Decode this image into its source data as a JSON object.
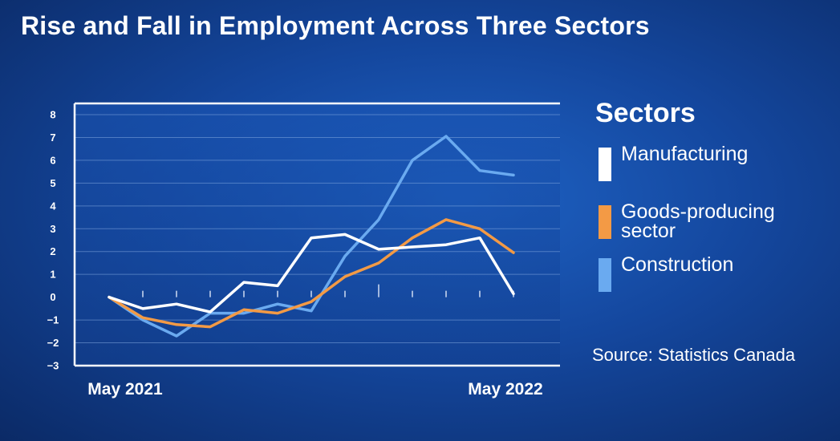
{
  "title": "Rise and Fall in Employment Across Three Sectors",
  "legend_title": "Sectors",
  "source": "Source: Statistics Canada",
  "chart_data": {
    "type": "line",
    "title": "Rise and Fall in Employment Across Three Sectors",
    "x": [
      "May 2021",
      "",
      "",
      "",
      "",
      "",
      "",
      "",
      "",
      "",
      "",
      "",
      "May 2022"
    ],
    "x_tick_labels": [
      "May 2021",
      "May 2022"
    ],
    "y_ticks": [
      8,
      7,
      6,
      5,
      4,
      3,
      2,
      1,
      0,
      -1,
      -2,
      -3
    ],
    "ylim": [
      -3,
      8
    ],
    "grid": true,
    "legend": "right",
    "series": [
      {
        "name": "Manufacturing",
        "color": "#ffffff",
        "values": [
          0,
          -0.5,
          -0.3,
          -0.65,
          0.65,
          0.5,
          2.6,
          2.75,
          2.1,
          2.2,
          2.3,
          2.6,
          0.15
        ]
      },
      {
        "name": "Goods-producing sector",
        "color": "#f39a45",
        "values": [
          0,
          -0.9,
          -1.2,
          -1.3,
          -0.55,
          -0.7,
          -0.2,
          0.9,
          1.5,
          2.6,
          3.4,
          3.0,
          1.95
        ]
      },
      {
        "name": "Construction",
        "color": "#6aaaf0",
        "values": [
          0,
          -1.0,
          -1.7,
          -0.7,
          -0.7,
          -0.3,
          -0.6,
          1.8,
          3.4,
          6.0,
          7.05,
          5.55,
          5.35
        ]
      }
    ]
  }
}
